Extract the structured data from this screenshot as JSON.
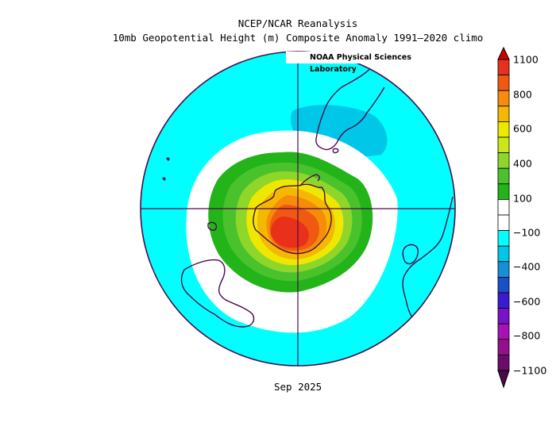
{
  "title_line1": "NCEP/NCAR Reanalysis",
  "title_line2": "10mb Geopotential Height (m) Composite Anomaly 1991–2020 climo",
  "credit": "NOAA Physical Sciences Laboratory",
  "date_label": "Sep 2025",
  "colorbar": {
    "labels": [
      "1100",
      "800",
      "600",
      "400",
      "100",
      "−100",
      "−400",
      "−600",
      "−800",
      "−1100"
    ],
    "colors": [
      "#e8301a",
      "#f05a10",
      "#f58c0a",
      "#f5b800",
      "#eee800",
      "#c9e81a",
      "#8fd62a",
      "#49c22c",
      "#23b419",
      "#ffffff",
      "#ffffff",
      "#00ffff",
      "#00c7e8",
      "#168fd8",
      "#1a4fc8",
      "#3a1ad2",
      "#7a12c8",
      "#a812b4",
      "#930f8c",
      "#6a0a6a"
    ],
    "top_arrow_color": "#d00000",
    "bottom_arrow_color": "#4a0a4a"
  },
  "map": {
    "projection": "south-polar-stereographic",
    "field_colors": {
      "neg_100": "#00ffff",
      "neg_200": "#00c7e8",
      "near_zero": "#ffffff",
      "pos_100": "#23b419",
      "pos_200": "#49c22c",
      "pos_300": "#8fd62a",
      "pos_400": "#c9e81a",
      "pos_500": "#eee800",
      "pos_600": "#f5b800",
      "pos_700": "#f58c0a",
      "pos_800": "#f05a10",
      "pos_900": "#e8301a"
    },
    "coast_color": "#4a0a4a"
  }
}
